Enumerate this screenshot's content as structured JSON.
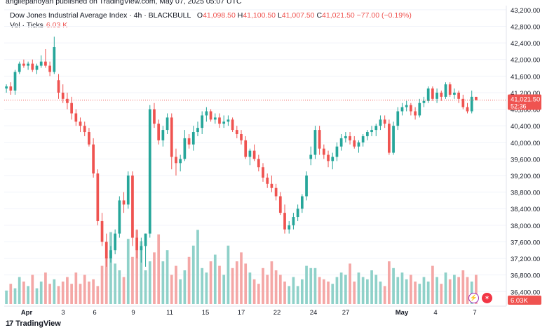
{
  "header": {
    "publisher_line": "angilepanoyan published on TradingView.com, May 07, 2025 05:07 UTC",
    "title": "Dow Jones Industrial Average Index · 4h · BLACKBULL",
    "open_label": "O",
    "open": "41,098.50",
    "high_label": "H",
    "high": "41,100.50",
    "low_label": "L",
    "low": "41,007.50",
    "close_label": "C",
    "close": "41,021.50",
    "change": "−77.00 (−0.19%)",
    "volume_label": "Vol · Ticks",
    "volume_value": "6.03 K"
  },
  "footer": {
    "logo_text": "TradingView",
    "logo_mark": "17"
  },
  "colors": {
    "up": "#26a69a",
    "down": "#ef5350",
    "vol_up": "#8fd1c9",
    "vol_down": "#f4a7a6",
    "grid": "#f0f3fa",
    "axis_text": "#131722"
  },
  "chart_data": {
    "type": "candlestick",
    "price_axis": {
      "ticks": [
        36400,
        36800,
        37200,
        37600,
        38000,
        38400,
        38800,
        39200,
        39600,
        40000,
        40400,
        40800,
        41200,
        41600,
        42000,
        42400,
        42800,
        43200
      ],
      "tick_labels": [
        "36,400.00",
        "36,800.00",
        "37,200.00",
        "37,600.00",
        "38,000.00",
        "38,400.00",
        "38,800.00",
        "39,200.00",
        "39,600.00",
        "40,000.00",
        "40,400.00",
        "40,800.00",
        "41,200.00",
        "41,600.00",
        "42,000.00",
        "42,400.00",
        "42,800.00",
        "43,200.00"
      ],
      "ylim": [
        36100,
        43300
      ]
    },
    "current_price": {
      "label": "41,021.50",
      "countdown": "52:36",
      "value": 41021.5
    },
    "volume_badge": "6.03K",
    "time_axis": {
      "labels": [
        "Apr",
        "3",
        "6",
        "9",
        "11",
        "15",
        "17",
        "22",
        "24",
        "27",
        "May",
        "4",
        "7"
      ],
      "bold_labels": [
        "Apr",
        "May"
      ]
    },
    "candles": [
      [
        41300,
        41400,
        41200,
        41350
      ],
      [
        41350,
        41450,
        41150,
        41250
      ],
      [
        41250,
        41750,
        41150,
        41700
      ],
      [
        41700,
        41950,
        41650,
        41900
      ],
      [
        41900,
        42000,
        41800,
        41850
      ],
      [
        41850,
        41950,
        41750,
        41900
      ],
      [
        41900,
        42000,
        41700,
        41750
      ],
      [
        41750,
        41900,
        41650,
        41850
      ],
      [
        41850,
        42100,
        41800,
        41950
      ],
      [
        41950,
        42250,
        41800,
        41850
      ],
      [
        41850,
        41950,
        41600,
        41700
      ],
      [
        41700,
        42550,
        41650,
        42300
      ],
      [
        41500,
        41650,
        41050,
        41200
      ],
      [
        41200,
        41400,
        40950,
        41050
      ],
      [
        41050,
        41200,
        40800,
        40950
      ],
      [
        40950,
        41100,
        40550,
        40700
      ],
      [
        40700,
        40800,
        40400,
        40500
      ],
      [
        40500,
        40600,
        40250,
        40400
      ],
      [
        40400,
        40500,
        40150,
        40250
      ],
      [
        40250,
        40350,
        39900,
        39950
      ],
      [
        39950,
        40100,
        39150,
        39250
      ],
      [
        39250,
        39350,
        38000,
        38100
      ],
      [
        38100,
        38300,
        37500,
        37600
      ],
      [
        37600,
        37800,
        37000,
        37200
      ],
      [
        37200,
        37500,
        37100,
        37400
      ],
      [
        37400,
        37900,
        37300,
        37800
      ],
      [
        37800,
        38700,
        37700,
        38600
      ],
      [
        38600,
        38800,
        38300,
        38500
      ],
      [
        38500,
        39300,
        38400,
        39200
      ],
      [
        39200,
        39300,
        37500,
        37700
      ],
      [
        37700,
        37900,
        37200,
        37400
      ],
      [
        37400,
        37700,
        37100,
        37500
      ],
      [
        37500,
        37800,
        37000,
        37800
      ],
      [
        37800,
        40900,
        37700,
        40800
      ],
      [
        40800,
        40950,
        40350,
        40450
      ],
      [
        40450,
        40550,
        39950,
        40050
      ],
      [
        40050,
        40400,
        39900,
        40300
      ],
      [
        40300,
        40700,
        40200,
        40600
      ],
      [
        40600,
        40700,
        39350,
        39650
      ],
      [
        39650,
        39850,
        39200,
        39500
      ],
      [
        39500,
        39700,
        39300,
        39600
      ],
      [
        39600,
        40300,
        39550,
        40100
      ],
      [
        40100,
        40200,
        39850,
        39950
      ],
      [
        39950,
        40400,
        39800,
        40250
      ],
      [
        40250,
        40500,
        40150,
        40350
      ],
      [
        40350,
        40750,
        40200,
        40650
      ],
      [
        40650,
        40850,
        40500,
        40750
      ],
      [
        40750,
        40800,
        40500,
        40550
      ],
      [
        40550,
        40700,
        40450,
        40600
      ],
      [
        40600,
        40700,
        40350,
        40450
      ],
      [
        40450,
        40650,
        40350,
        40500
      ],
      [
        40500,
        40650,
        40400,
        40550
      ],
      [
        40550,
        40600,
        40250,
        40300
      ],
      [
        40300,
        40400,
        40100,
        40200
      ],
      [
        40200,
        40300,
        39950,
        40050
      ],
      [
        40050,
        40150,
        39600,
        39650
      ],
      [
        39650,
        39850,
        39450,
        39800
      ],
      [
        39800,
        39950,
        39550,
        39600
      ],
      [
        39600,
        39700,
        39300,
        39400
      ],
      [
        39400,
        39500,
        39050,
        39150
      ],
      [
        39150,
        39250,
        38900,
        39000
      ],
      [
        39000,
        39200,
        38800,
        38900
      ],
      [
        38900,
        39000,
        38600,
        38700
      ],
      [
        38700,
        38800,
        38250,
        38300
      ],
      [
        38300,
        38500,
        37800,
        37900
      ],
      [
        37900,
        38100,
        37800,
        38000
      ],
      [
        38000,
        38300,
        37900,
        38200
      ],
      [
        38200,
        38500,
        38100,
        38400
      ],
      [
        38400,
        38750,
        38300,
        38700
      ],
      [
        38700,
        39300,
        38600,
        39200
      ],
      [
        39600,
        39900,
        39450,
        39700
      ],
      [
        39700,
        40400,
        39600,
        40300
      ],
      [
        40300,
        40400,
        39700,
        39850
      ],
      [
        39850,
        39950,
        39600,
        39700
      ],
      [
        39700,
        39800,
        39400,
        39550
      ],
      [
        39550,
        39750,
        39350,
        39650
      ],
      [
        39650,
        40000,
        39550,
        39900
      ],
      [
        39900,
        40200,
        39800,
        40100
      ],
      [
        40100,
        40250,
        40000,
        40150
      ],
      [
        40150,
        40250,
        39950,
        40050
      ],
      [
        40050,
        40150,
        39850,
        39900
      ],
      [
        39900,
        40050,
        39750,
        40000
      ],
      [
        40000,
        40200,
        39900,
        40150
      ],
      [
        40150,
        40300,
        40050,
        40250
      ],
      [
        40250,
        40400,
        40150,
        40300
      ],
      [
        40300,
        40450,
        40150,
        40400
      ],
      [
        40400,
        40650,
        40300,
        40550
      ],
      [
        40550,
        40650,
        40350,
        40450
      ],
      [
        40450,
        40550,
        39700,
        39750
      ],
      [
        39750,
        40500,
        39700,
        40400
      ],
      [
        40400,
        40850,
        40300,
        40750
      ],
      [
        40750,
        40950,
        40650,
        40850
      ],
      [
        40850,
        41000,
        40750,
        40900
      ],
      [
        40900,
        40950,
        40650,
        40750
      ],
      [
        40750,
        40850,
        40550,
        40650
      ],
      [
        40650,
        41050,
        40600,
        40950
      ],
      [
        40950,
        41100,
        40850,
        41000
      ],
      [
        41000,
        41350,
        40950,
        41300
      ],
      [
        41300,
        41350,
        41000,
        41050
      ],
      [
        41050,
        41300,
        40950,
        41200
      ],
      [
        41200,
        41250,
        41000,
        41100
      ],
      [
        41100,
        41450,
        41050,
        41400
      ],
      [
        41400,
        41450,
        41100,
        41150
      ],
      [
        41150,
        41300,
        41050,
        41200
      ],
      [
        41200,
        41250,
        40950,
        41050
      ],
      [
        41050,
        41150,
        40800,
        40850
      ],
      [
        40850,
        40950,
        40700,
        40750
      ],
      [
        40750,
        41250,
        40700,
        41100
      ],
      [
        41098.5,
        41100.5,
        41007.5,
        41021.5
      ]
    ],
    "volumes": [
      6,
      9,
      7,
      12,
      10,
      8,
      13,
      7,
      10,
      14,
      9,
      11,
      8,
      10,
      12,
      9,
      14,
      9,
      13,
      10,
      11,
      8,
      17,
      21,
      32,
      18,
      15,
      12,
      29,
      21,
      33,
      28,
      15,
      19,
      23,
      31,
      19,
      24,
      13,
      17,
      11,
      15,
      21,
      26,
      33,
      16,
      14,
      19,
      22,
      17,
      13,
      26,
      16,
      19,
      23,
      18,
      14,
      11,
      9,
      16,
      13,
      19,
      15,
      13,
      10,
      8,
      12,
      8,
      11,
      17,
      16,
      16,
      12,
      11,
      10,
      9,
      12,
      14,
      13,
      18,
      10,
      14,
      12,
      11,
      15,
      13,
      10,
      8,
      19,
      16,
      12,
      14,
      11,
      13,
      10,
      9,
      12,
      10,
      17,
      12,
      9,
      14,
      11,
      13,
      12,
      15,
      12,
      10,
      13
    ]
  }
}
